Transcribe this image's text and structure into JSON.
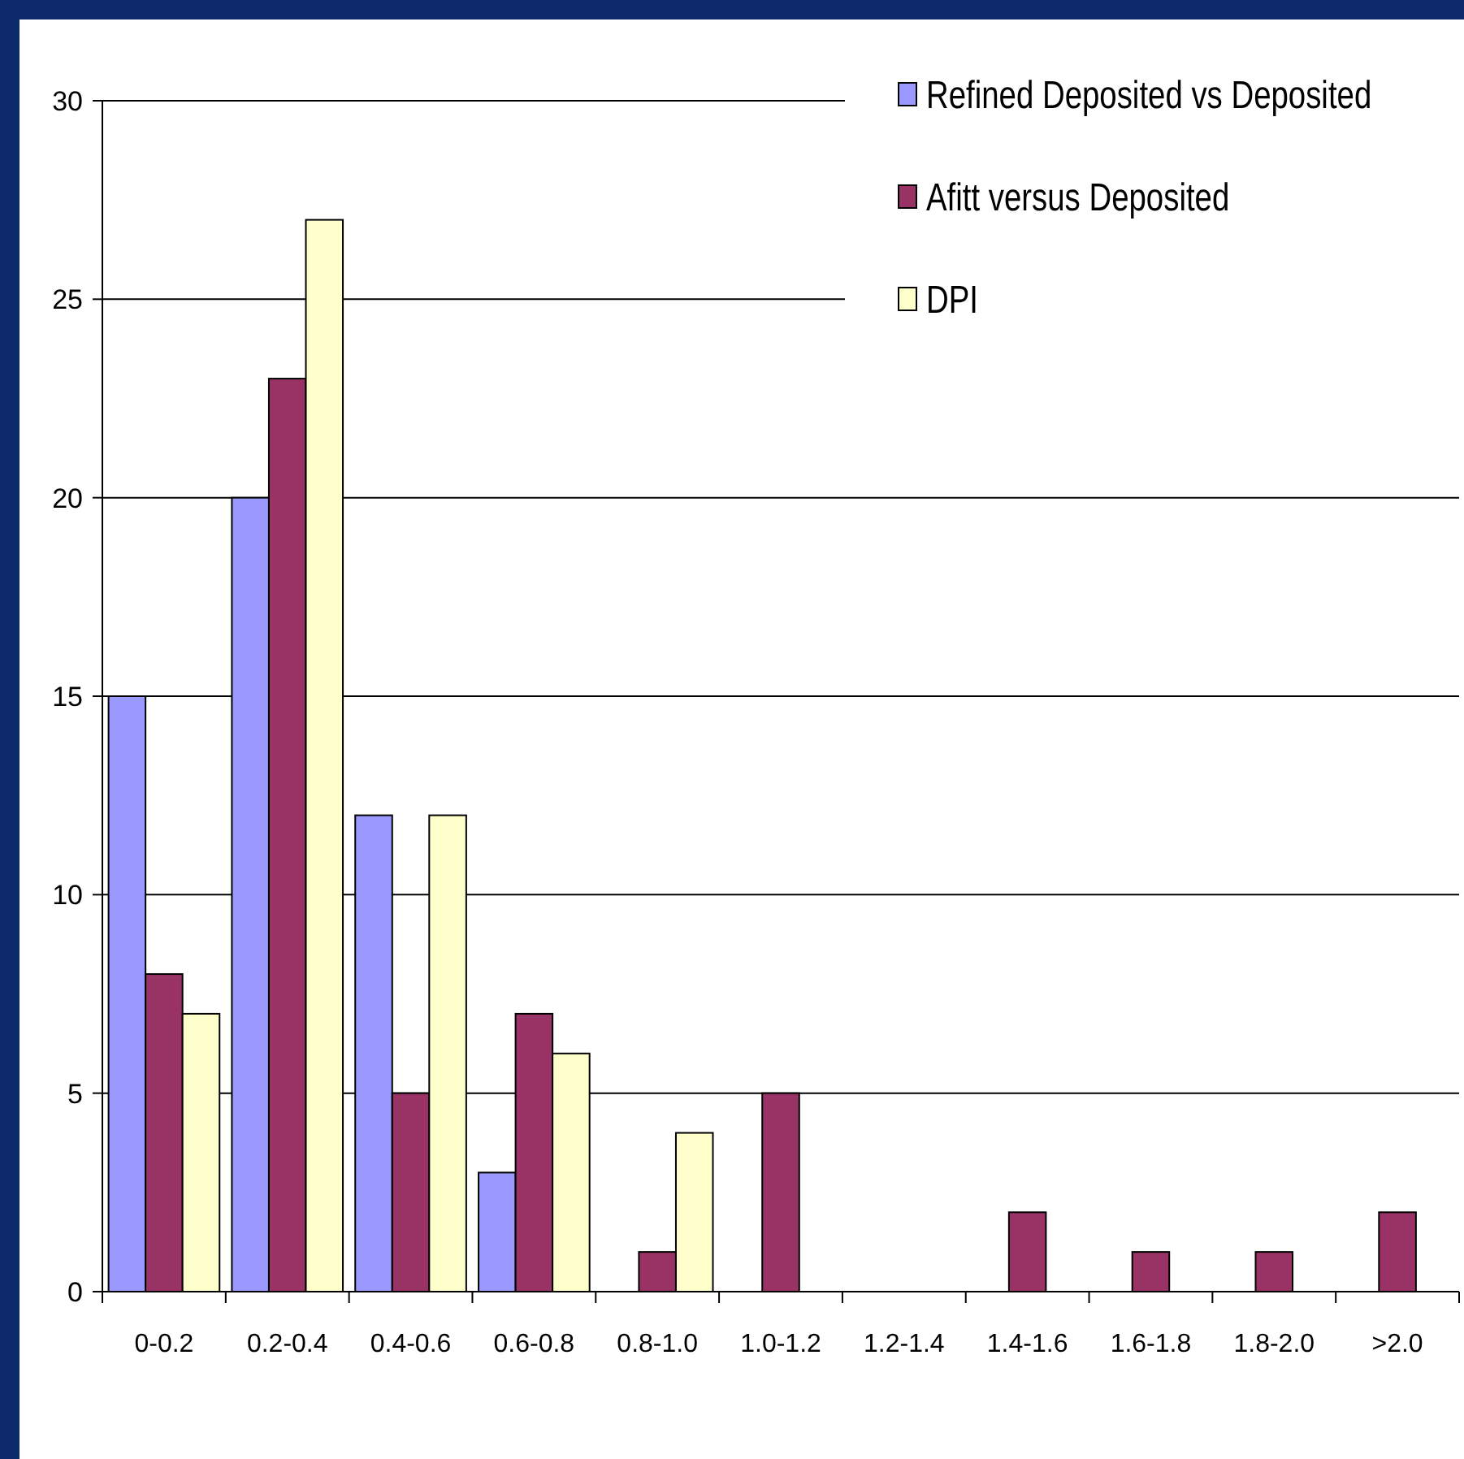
{
  "chart_data": {
    "type": "bar",
    "categories": [
      "0-0.2",
      "0.2-0.4",
      "0.4-0.6",
      "0.6-0.8",
      "0.8-1.0",
      "1.0-1.2",
      "1.2-1.4",
      "1.4-1.6",
      "1.6-1.8",
      "1.8-2.0",
      ">2.0"
    ],
    "series": [
      {
        "name": "Refined Deposited vs Deposited",
        "color": "#9999ff",
        "values": [
          15,
          20,
          12,
          3,
          0,
          0,
          0,
          0,
          0,
          0,
          0
        ]
      },
      {
        "name": "Afitt versus Deposited",
        "color": "#993366",
        "values": [
          8,
          23,
          5,
          7,
          1,
          5,
          0,
          2,
          1,
          1,
          2
        ]
      },
      {
        "name": "DPI",
        "color": "#ffffcc",
        "values": [
          7,
          27,
          12,
          6,
          4,
          0,
          0,
          0,
          0,
          0,
          0
        ]
      }
    ],
    "ylim": [
      0,
      30
    ],
    "yticks": [
      0,
      5,
      10,
      15,
      20,
      25,
      30
    ],
    "grid": "y",
    "legend": "top right"
  }
}
